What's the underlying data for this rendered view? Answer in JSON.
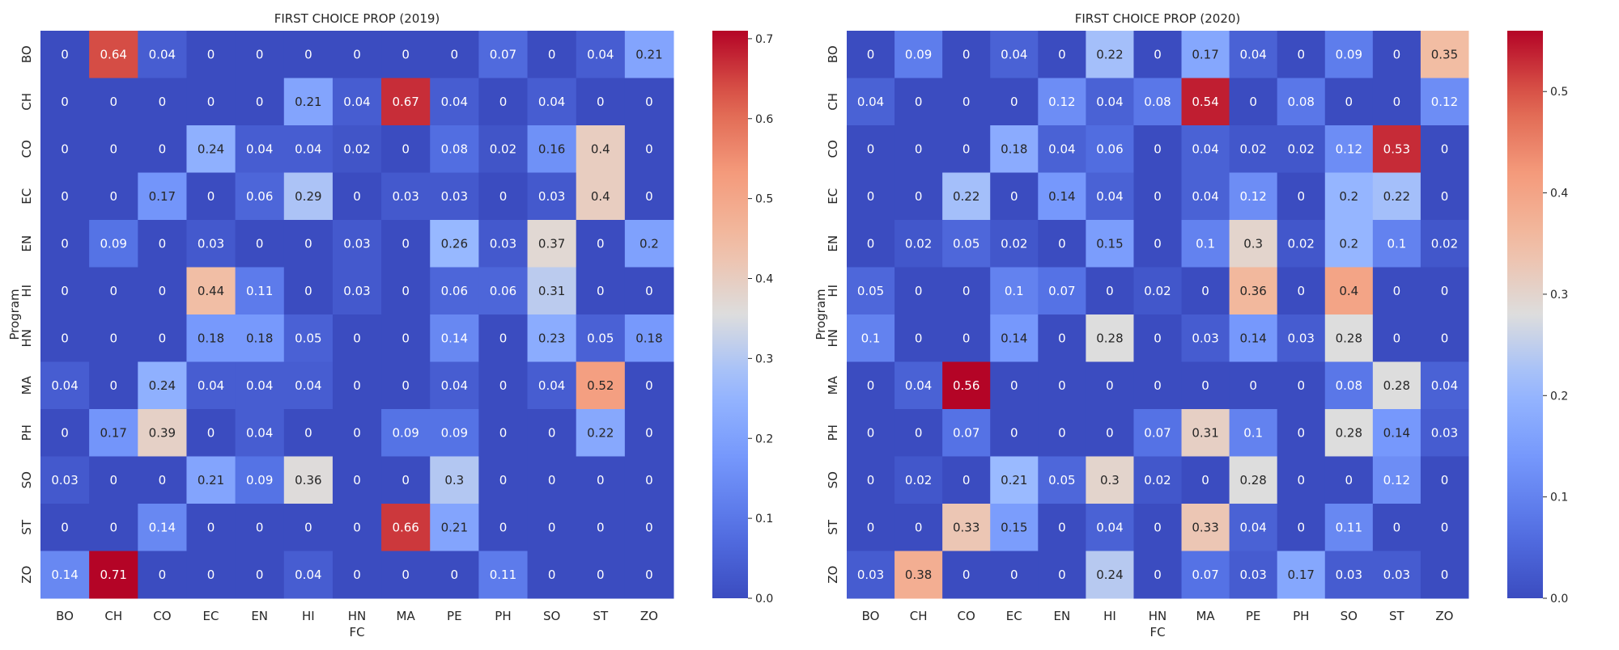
{
  "chart_data": [
    {
      "type": "heatmap",
      "title": "FIRST CHOICE PROP (2019)",
      "xlabel": "FC",
      "ylabel": "Program",
      "x_categories": [
        "BO",
        "CH",
        "CO",
        "EC",
        "EN",
        "HI",
        "HN",
        "MA",
        "PE",
        "PH",
        "SO",
        "ST",
        "ZO"
      ],
      "y_categories": [
        "BO",
        "CH",
        "CO",
        "EC",
        "EN",
        "HI",
        "HN",
        "MA",
        "PH",
        "SO",
        "ST",
        "ZO"
      ],
      "colormap": "coolwarm",
      "vmin": 0,
      "vmax": 0.71,
      "colorbar_ticks": [
        "0.0",
        "0.1",
        "0.2",
        "0.3",
        "0.4",
        "0.5",
        "0.6",
        "0.7"
      ],
      "values": [
        [
          0,
          0.64,
          0.04,
          0,
          0,
          0,
          0,
          0,
          0,
          0.07,
          0,
          0.04,
          0.21
        ],
        [
          0,
          0,
          0,
          0,
          0,
          0.21,
          0.04,
          0.67,
          0.04,
          0,
          0.04,
          0,
          0
        ],
        [
          0,
          0,
          0,
          0.24,
          0.04,
          0.04,
          0.02,
          0,
          0.08,
          0.02,
          0.16,
          0.4,
          0
        ],
        [
          0,
          0,
          0.17,
          0,
          0.06,
          0.29,
          0,
          0.03,
          0.03,
          0,
          0.03,
          0.4,
          0
        ],
        [
          0,
          0.09,
          0,
          0.03,
          0,
          0,
          0.03,
          0,
          0.26,
          0.03,
          0.37,
          0,
          0.2
        ],
        [
          0,
          0,
          0,
          0.44,
          0.11,
          0,
          0.03,
          0,
          0.06,
          0.06,
          0.31,
          0,
          0
        ],
        [
          0,
          0,
          0,
          0.18,
          0.18,
          0.05,
          0,
          0,
          0.14,
          0,
          0.23,
          0.05,
          0.18
        ],
        [
          0.04,
          0,
          0.24,
          0.04,
          0.04,
          0.04,
          0,
          0,
          0.04,
          0,
          0.04,
          0.52,
          0
        ],
        [
          0,
          0.17,
          0.39,
          0,
          0.04,
          0,
          0,
          0.09,
          0.09,
          0,
          0,
          0.22,
          0
        ],
        [
          0.03,
          0,
          0,
          0.21,
          0.09,
          0.36,
          0,
          0,
          0.3,
          0,
          0,
          0,
          0
        ],
        [
          0,
          0,
          0.14,
          0,
          0,
          0,
          0,
          0.66,
          0.21,
          0,
          0,
          0,
          0
        ],
        [
          0.14,
          0.71,
          0,
          0,
          0,
          0.04,
          0,
          0,
          0,
          0.11,
          0,
          0,
          0
        ]
      ]
    },
    {
      "type": "heatmap",
      "title": "FIRST CHOICE PROP (2020)",
      "xlabel": "FC",
      "ylabel": "Program",
      "x_categories": [
        "BO",
        "CH",
        "CO",
        "EC",
        "EN",
        "HI",
        "HN",
        "MA",
        "PE",
        "PH",
        "SO",
        "ST",
        "ZO"
      ],
      "y_categories": [
        "BO",
        "CH",
        "CO",
        "EC",
        "EN",
        "HI",
        "HN",
        "MA",
        "PH",
        "SO",
        "ST",
        "ZO"
      ],
      "colormap": "coolwarm",
      "vmin": 0,
      "vmax": 0.56,
      "colorbar_ticks": [
        "0.0",
        "0.1",
        "0.2",
        "0.3",
        "0.4",
        "0.5"
      ],
      "values": [
        [
          0,
          0.09,
          0,
          0.04,
          0,
          0.22,
          0,
          0.17,
          0.04,
          0,
          0.09,
          0,
          0.35
        ],
        [
          0.04,
          0,
          0,
          0,
          0.12,
          0.04,
          0.08,
          0.54,
          0,
          0.08,
          0,
          0,
          0.12
        ],
        [
          0,
          0,
          0,
          0.18,
          0.04,
          0.06,
          0,
          0.04,
          0.02,
          0.02,
          0.12,
          0.53,
          0
        ],
        [
          0,
          0,
          0.22,
          0,
          0.14,
          0.04,
          0,
          0.04,
          0.12,
          0,
          0.2,
          0.22,
          0
        ],
        [
          0,
          0.02,
          0.05,
          0.02,
          0,
          0.15,
          0,
          0.1,
          0.3,
          0.02,
          0.2,
          0.1,
          0.02
        ],
        [
          0.05,
          0,
          0,
          0.1,
          0.07,
          0,
          0.02,
          0,
          0.36,
          0,
          0.4,
          0,
          0
        ],
        [
          0.1,
          0,
          0,
          0.14,
          0,
          0.28,
          0,
          0.03,
          0.14,
          0.03,
          0.28,
          0,
          0
        ],
        [
          0,
          0.04,
          0.56,
          0,
          0,
          0,
          0,
          0,
          0,
          0,
          0.08,
          0.28,
          0.04
        ],
        [
          0,
          0,
          0.07,
          0,
          0,
          0,
          0.07,
          0.31,
          0.1,
          0,
          0.28,
          0.14,
          0.03
        ],
        [
          0,
          0.02,
          0,
          0.21,
          0.05,
          0.3,
          0.02,
          0,
          0.28,
          0,
          0,
          0.12,
          0
        ],
        [
          0,
          0,
          0.33,
          0.15,
          0,
          0.04,
          0,
          0.33,
          0.04,
          0,
          0.11,
          0,
          0
        ],
        [
          0.03,
          0.38,
          0,
          0,
          0,
          0.24,
          0,
          0.07,
          0.03,
          0.17,
          0.03,
          0.03,
          0
        ]
      ]
    }
  ]
}
